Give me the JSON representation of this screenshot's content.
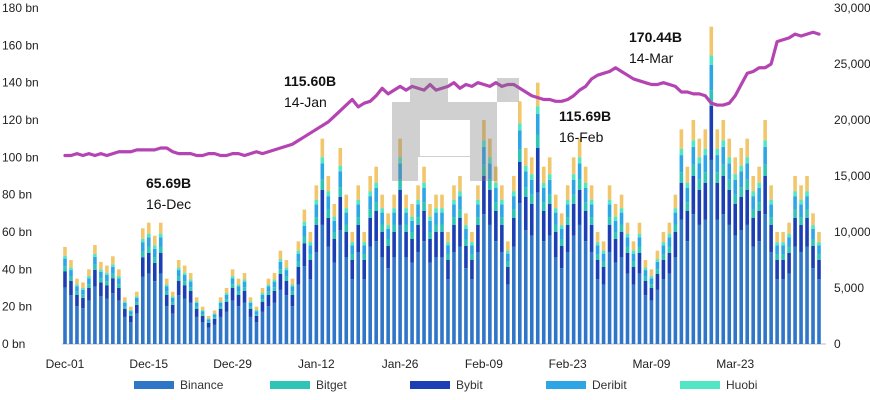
{
  "chart_data": {
    "type": "bar",
    "title": "",
    "xlabel": "",
    "ylabel": "",
    "ylim": [
      0,
      180
    ],
    "y2lim": [
      0,
      30000
    ],
    "y_ticks": [
      "0 bn",
      "20 bn",
      "40 bn",
      "60 bn",
      "80 bn",
      "100 bn",
      "120 bn",
      "140 bn",
      "160 bn",
      "180 bn"
    ],
    "y2_ticks": [
      "0",
      "5,000",
      "10,000",
      "15,000",
      "20,000",
      "25,000",
      "30,000"
    ],
    "x_tick_labels": [
      "Dec-01",
      "Dec-15",
      "Dec-29",
      "Jan-12",
      "Jan-26",
      "Feb-09",
      "Feb-23",
      "Mar-09",
      "Mar-23"
    ],
    "totals": [
      52,
      45,
      35,
      33,
      40,
      53,
      44,
      42,
      47,
      40,
      25,
      20,
      28,
      62,
      65,
      58,
      65,
      35,
      28,
      45,
      42,
      38,
      25,
      20,
      15,
      18,
      25,
      30,
      40,
      35,
      38,
      25,
      20,
      30,
      35,
      38,
      50,
      45,
      35,
      55,
      72,
      60,
      85,
      110,
      90,
      75,
      105,
      80,
      60,
      85,
      60,
      90,
      95,
      80,
      70,
      80,
      110,
      80,
      75,
      85,
      95,
      75,
      80,
      80,
      60,
      85,
      90,
      70,
      60,
      85,
      120,
      110,
      95,
      85,
      55,
      90,
      130,
      105,
      100,
      140,
      95,
      100,
      80,
      70,
      85,
      100,
      110,
      95,
      85,
      60,
      55,
      85,
      75,
      80,
      65,
      55,
      65,
      45,
      40,
      50,
      60,
      65,
      80,
      115,
      95,
      120,
      110,
      115,
      170,
      115,
      120,
      110,
      100,
      105,
      110,
      90,
      95,
      120,
      85,
      60,
      60,
      65,
      90,
      85,
      90,
      70,
      60
    ],
    "shares": {
      "Binance": 0.58,
      "Bybit": 0.17,
      "Bitget": 0.05,
      "Deribit": 0.08,
      "Huobi": 0.03,
      "Other": 0.09
    },
    "series": [
      {
        "name": "Binance",
        "color": "#2f75c8"
      },
      {
        "name": "Bitget",
        "color": "#2ec4b6"
      },
      {
        "name": "Bybit",
        "color": "#1c3fb5"
      },
      {
        "name": "Deribit",
        "color": "#2ea6e6"
      },
      {
        "name": "Huobi",
        "color": "#52e6c5"
      }
    ],
    "other_color": "#f2c66b",
    "line": {
      "color": "#b544b3",
      "values": [
        101,
        101,
        102,
        101,
        102,
        101,
        102,
        101,
        102,
        103,
        103,
        103,
        104,
        104,
        104,
        104,
        105,
        105,
        103,
        102,
        102,
        102,
        101,
        101,
        102,
        102,
        101,
        101,
        102,
        102,
        101,
        102,
        103,
        102,
        103,
        104,
        105,
        106,
        107,
        109,
        111,
        113,
        115,
        117,
        119,
        122,
        125,
        128,
        131,
        127,
        129,
        130,
        133,
        137,
        134,
        136,
        138,
        136,
        138,
        137,
        136,
        139,
        136,
        137,
        138,
        140,
        137,
        139,
        138,
        140,
        139,
        138,
        140,
        138,
        139,
        139,
        137,
        135,
        133,
        132,
        131,
        131,
        130,
        130,
        131,
        133,
        136,
        138,
        142,
        144,
        145,
        146,
        148,
        146,
        144,
        142,
        141,
        140,
        139,
        139,
        140,
        139,
        138,
        135,
        135,
        134,
        134,
        133,
        129,
        128,
        128,
        129,
        133,
        139,
        145,
        146,
        148,
        148,
        150,
        162,
        163,
        164,
        166,
        165,
        166,
        167,
        166
      ]
    },
    "annotations": [
      {
        "value": "65.69B",
        "date": "16-Dec"
      },
      {
        "value": "115.60B",
        "date": "14-Jan"
      },
      {
        "value": "115.69B",
        "date": "16-Feb"
      },
      {
        "value": "170.44B",
        "date": "14-Mar"
      }
    ],
    "legend": {
      "position": "bottom",
      "entries": [
        "Binance",
        "Bitget",
        "Bybit",
        "Deribit",
        "Huobi"
      ]
    }
  }
}
